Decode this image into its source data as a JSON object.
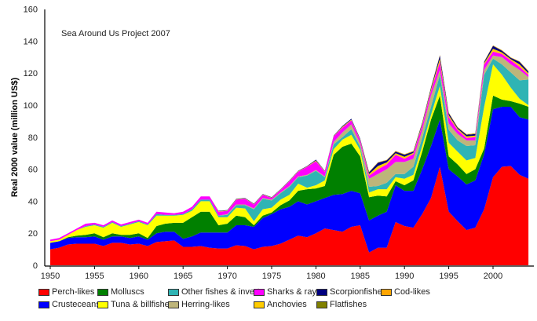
{
  "chart_data": {
    "type": "area",
    "stacked": true,
    "title": "",
    "annotation": "Sea Around Us Project 2007",
    "xlabel": "",
    "ylabel": "Real 2000 value (million US$)",
    "xlim": [
      1950,
      2004
    ],
    "ylim": [
      0,
      160
    ],
    "x_ticks": [
      "1950",
      "1955",
      "1960",
      "1965",
      "1970",
      "1975",
      "1980",
      "1985",
      "1990",
      "1995",
      "2000"
    ],
    "y_ticks": [
      "0",
      "20",
      "40",
      "60",
      "80",
      "100",
      "120",
      "140",
      "160"
    ],
    "grid": false,
    "legend_position": "bottom",
    "x": [
      1950,
      1951,
      1952,
      1953,
      1954,
      1955,
      1956,
      1957,
      1958,
      1959,
      1960,
      1961,
      1962,
      1963,
      1964,
      1965,
      1966,
      1967,
      1968,
      1969,
      1970,
      1971,
      1972,
      1973,
      1974,
      1975,
      1976,
      1977,
      1978,
      1979,
      1980,
      1981,
      1982,
      1983,
      1984,
      1985,
      1986,
      1987,
      1988,
      1989,
      1990,
      1991,
      1992,
      1993,
      1994,
      1995,
      1996,
      1997,
      1998,
      1999,
      2000,
      2001,
      2002,
      2003,
      2004
    ],
    "series": [
      {
        "name": "Perch-likes",
        "color": "#ff0000",
        "values": [
          10,
          11,
          13,
          13.5,
          13.5,
          13.5,
          12,
          14,
          14,
          13,
          13.5,
          12,
          14.5,
          15,
          15.5,
          11.5,
          11.5,
          12,
          11,
          10.5,
          10.5,
          12.5,
          12,
          10,
          11.5,
          12,
          13.5,
          16,
          18.5,
          17.5,
          20,
          23,
          22,
          21,
          24,
          25,
          8,
          11,
          11,
          27,
          24.5,
          23.5,
          32,
          42,
          61.5,
          33.5,
          27.5,
          22,
          23.5,
          35,
          55,
          61.5,
          62,
          56.5,
          54
        ]
      },
      {
        "name": "Crusteceans",
        "color": "#0000ff",
        "values": [
          4,
          4,
          4,
          4,
          4,
          4.5,
          4,
          4,
          4,
          4,
          4.5,
          4,
          5.5,
          6,
          5.5,
          5,
          6.5,
          8.5,
          9.5,
          10,
          10,
          12.5,
          13,
          14,
          18,
          20,
          21.5,
          20.5,
          21.5,
          20.5,
          20,
          19,
          22,
          23.5,
          22.5,
          20,
          20,
          20,
          22.5,
          23,
          22,
          23,
          28,
          32.5,
          29.5,
          26.5,
          28,
          28.5,
          29.5,
          34.5,
          42.5,
          37.5,
          37,
          36,
          37
        ]
      },
      {
        "name": "Molluscs",
        "color": "#008000",
        "values": [
          0,
          0,
          0.5,
          1,
          1.5,
          2,
          1.5,
          2,
          1,
          2,
          2,
          1,
          4.5,
          5,
          5.5,
          10,
          12,
          13,
          13,
          4.5,
          5.5,
          6,
          5,
          1,
          1.5,
          1,
          2.5,
          4,
          6.5,
          9.5,
          8,
          7.5,
          25,
          29.5,
          29.5,
          23,
          14.5,
          12.5,
          9.5,
          2.5,
          3.5,
          6.5,
          11,
          16.5,
          15,
          8,
          7.5,
          6.5,
          7,
          3.5,
          8.5,
          4.5,
          3.5,
          8.5,
          8
        ]
      },
      {
        "name": "Tuna & billfishes",
        "color": "#ffff00",
        "values": [
          1,
          1,
          1.5,
          3.5,
          5,
          5,
          6,
          6.5,
          5,
          6.5,
          7,
          8,
          6.5,
          5,
          4.5,
          5,
          4,
          6.5,
          6.5,
          5,
          4,
          5,
          5.5,
          2.5,
          4,
          3,
          3.5,
          3.5,
          4.5,
          1,
          2,
          3.5,
          3.5,
          4.5,
          5.5,
          4,
          3,
          4,
          4.5,
          2.5,
          4,
          3.5,
          3.5,
          3,
          6,
          8.5,
          8,
          8.5,
          7,
          26,
          19.5,
          15.5,
          8.5,
          3,
          1
        ]
      },
      {
        "name": "Other fishes & inverts",
        "color": "#2fb4b4",
        "values": [
          0,
          0,
          0,
          0,
          0.5,
          0.5,
          0.5,
          0.5,
          0.5,
          0.5,
          0.5,
          0.5,
          1,
          0.5,
          0.5,
          0.5,
          1,
          1,
          1,
          1,
          1.5,
          1.5,
          2,
          7.5,
          6.5,
          4.5,
          4,
          5,
          4,
          7.5,
          9,
          2,
          3,
          1.5,
          3.5,
          2,
          3.5,
          2,
          4,
          2,
          3,
          5,
          5,
          5,
          7,
          8,
          7,
          9,
          8,
          20,
          3.5,
          6.5,
          9.5,
          11.5,
          16
        ]
      },
      {
        "name": "Herring-likes",
        "color": "#bdb57a",
        "values": [
          0,
          0,
          0,
          0,
          0,
          0,
          0,
          0,
          0,
          0,
          0,
          0,
          0,
          0,
          0,
          0,
          0,
          0,
          0,
          0,
          0.5,
          0.5,
          0.5,
          0.5,
          0.5,
          0.5,
          0.5,
          0.5,
          0.5,
          0.5,
          0.5,
          0.5,
          1.5,
          3,
          3,
          2,
          5,
          7.5,
          8.5,
          7.5,
          7.5,
          5,
          5,
          7,
          3,
          4,
          4,
          3.5,
          3,
          3,
          2,
          4.5,
          5,
          6.5,
          1.5
        ]
      },
      {
        "name": "Sharks & rays",
        "color": "#ff00ff",
        "values": [
          1,
          1,
          1,
          1,
          1.5,
          1,
          1,
          1,
          1,
          1,
          1,
          1,
          1.5,
          1.5,
          1,
          1.5,
          1.5,
          2,
          2,
          2.5,
          2,
          3,
          3.5,
          2.5,
          2,
          1,
          1.5,
          3,
          3,
          5,
          5.5,
          3,
          3.5,
          3,
          2.5,
          2,
          2,
          3,
          3,
          4.5,
          2,
          3,
          3,
          3,
          5,
          4,
          2.5,
          1.5,
          2,
          3.5,
          2.5,
          2,
          2.5,
          2,
          1.5
        ]
      },
      {
        "name": "Anchovies",
        "color": "#ffcc00",
        "values": [
          0,
          0,
          0,
          0,
          0,
          0,
          0,
          0,
          0,
          0,
          0,
          0,
          0,
          0,
          0,
          0,
          0,
          0,
          0,
          0.25,
          0.25,
          0.25,
          0.25,
          0.25,
          0.25,
          0.25,
          0.25,
          0.25,
          0.25,
          0.25,
          0.5,
          0.25,
          0.25,
          0.5,
          0.5,
          0.5,
          1,
          2,
          1.25,
          1,
          1.25,
          0.75,
          0.75,
          1,
          2,
          1.25,
          0.75,
          1,
          1,
          0.75,
          1.75,
          1,
          0.75,
          1.5,
          1
        ]
      },
      {
        "name": "Scorpionfishes",
        "color": "#000080",
        "values": [
          0,
          0,
          0,
          0,
          0,
          0,
          0,
          0,
          0,
          0,
          0,
          0,
          0,
          0,
          0,
          0,
          0,
          0,
          0,
          0.25,
          0.25,
          0.25,
          0.25,
          0.25,
          0.25,
          0.25,
          0.25,
          0.25,
          0.25,
          0.25,
          0.5,
          0.25,
          0.25,
          0.5,
          0.5,
          0.5,
          1,
          2,
          1.25,
          1,
          1.25,
          0.75,
          0.75,
          1,
          2,
          1.25,
          0.75,
          1,
          1,
          0.75,
          1.75,
          1,
          0.75,
          1.5,
          1
        ]
      },
      {
        "name": "Flatfishes",
        "color": "#808000",
        "values": [
          0,
          0,
          0,
          0,
          0,
          0,
          0,
          0,
          0,
          0,
          0,
          0,
          0,
          0,
          0,
          0,
          0,
          0,
          0,
          0,
          0,
          0,
          0,
          0,
          0,
          0,
          0,
          0,
          0,
          0,
          0,
          0,
          0,
          0,
          0,
          0,
          0.2,
          0.2,
          0.2,
          0.2,
          0.2,
          0.2,
          0.2,
          0.2,
          0.2,
          0.2,
          0.2,
          0.2,
          0.2,
          0.2,
          0.2,
          0.2,
          0.2,
          0.2,
          0.2
        ]
      },
      {
        "name": "Cod-likes",
        "color": "#ffa500",
        "values": [
          0,
          0,
          0,
          0,
          0,
          0,
          0,
          0,
          0,
          0,
          0,
          0,
          0,
          0,
          0,
          0,
          0,
          0,
          0,
          0,
          0,
          0,
          0,
          0,
          0,
          0,
          0,
          0,
          0,
          0,
          0,
          0,
          0,
          0,
          0,
          0,
          0.2,
          0.2,
          0.2,
          0.2,
          0.2,
          0.2,
          0.2,
          0.2,
          0.2,
          0.2,
          0.2,
          0.2,
          0.2,
          0.2,
          0.2,
          0.2,
          0.2,
          0.2,
          0.2
        ]
      }
    ],
    "legend_order": [
      "Perch-likes",
      "Crusteceans",
      "Molluscs",
      "Tuna & billfishes",
      "Other fishes & inverts",
      "Herring-likes",
      "Sharks & rays",
      "Anchovies",
      "Scorpionfishes",
      "Flatfishes",
      "Cod-likes"
    ]
  }
}
